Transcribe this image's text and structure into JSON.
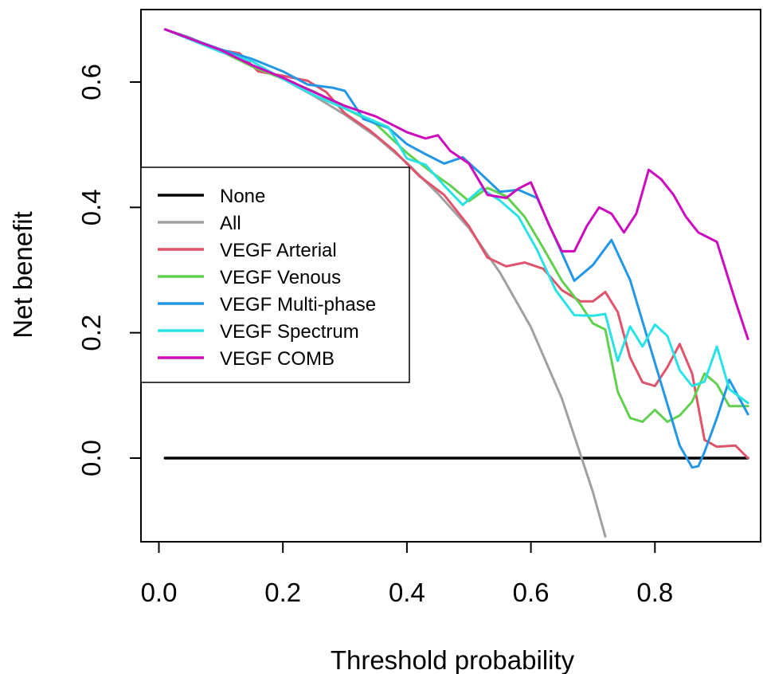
{
  "chart_data": {
    "type": "line",
    "title": "",
    "xlabel": "Threshold probability",
    "ylabel": "Net benefit",
    "xlim": [
      0.0,
      0.95
    ],
    "ylim": [
      -0.13,
      0.71
    ],
    "xticks": [
      "0.0",
      "0.2",
      "0.4",
      "0.6",
      "0.8"
    ],
    "yticks": [
      "0.0",
      "0.2",
      "0.4",
      "0.6"
    ],
    "grid": false,
    "legend_position": "left",
    "series": [
      {
        "name": "None",
        "color": "#000000",
        "x": [
          0.01,
          0.95
        ],
        "y": [
          0.0,
          0.0
        ]
      },
      {
        "name": "All",
        "color": "#A0A0A0",
        "x": [
          0.01,
          0.05,
          0.1,
          0.15,
          0.2,
          0.25,
          0.3,
          0.35,
          0.4,
          0.45,
          0.5,
          0.55,
          0.6,
          0.65,
          0.7,
          0.72
        ],
        "y": [
          0.684,
          0.671,
          0.649,
          0.627,
          0.605,
          0.578,
          0.548,
          0.513,
          0.471,
          0.422,
          0.367,
          0.296,
          0.209,
          0.095,
          -0.054,
          -0.125
        ]
      },
      {
        "name": "VEGF Arterial",
        "color": "#DF536B",
        "x": [
          0.01,
          0.1,
          0.13,
          0.16,
          0.2,
          0.24,
          0.27,
          0.3,
          0.34,
          0.38,
          0.42,
          0.46,
          0.5,
          0.53,
          0.56,
          0.59,
          0.62,
          0.65,
          0.68,
          0.7,
          0.72,
          0.74,
          0.76,
          0.78,
          0.8,
          0.82,
          0.84,
          0.86,
          0.88,
          0.9,
          0.93,
          0.95
        ],
        "y": [
          0.684,
          0.651,
          0.646,
          0.617,
          0.61,
          0.602,
          0.584,
          0.55,
          0.523,
          0.49,
          0.45,
          0.42,
          0.37,
          0.32,
          0.306,
          0.312,
          0.302,
          0.268,
          0.25,
          0.25,
          0.265,
          0.233,
          0.16,
          0.121,
          0.115,
          0.145,
          0.182,
          0.135,
          0.029,
          0.018,
          0.02,
          0.0
        ]
      },
      {
        "name": "VEGF Venous",
        "color": "#61D04F",
        "x": [
          0.01,
          0.1,
          0.15,
          0.2,
          0.25,
          0.3,
          0.35,
          0.4,
          0.44,
          0.47,
          0.5,
          0.53,
          0.56,
          0.59,
          0.62,
          0.65,
          0.68,
          0.7,
          0.72,
          0.74,
          0.76,
          0.78,
          0.8,
          0.82,
          0.84,
          0.86,
          0.88,
          0.9,
          0.92,
          0.95
        ],
        "y": [
          0.684,
          0.649,
          0.625,
          0.605,
          0.585,
          0.558,
          0.533,
          0.487,
          0.456,
          0.435,
          0.41,
          0.431,
          0.418,
          0.385,
          0.335,
          0.283,
          0.245,
          0.215,
          0.205,
          0.106,
          0.064,
          0.058,
          0.077,
          0.058,
          0.068,
          0.09,
          0.135,
          0.118,
          0.083,
          0.083
        ]
      },
      {
        "name": "VEGF Multi-phase",
        "color": "#2297E6",
        "x": [
          0.01,
          0.1,
          0.15,
          0.2,
          0.24,
          0.28,
          0.3,
          0.33,
          0.37,
          0.4,
          0.43,
          0.46,
          0.49,
          0.52,
          0.55,
          0.58,
          0.61,
          0.64,
          0.67,
          0.7,
          0.73,
          0.76,
          0.79,
          0.82,
          0.84,
          0.86,
          0.87,
          0.88,
          0.9,
          0.92,
          0.95
        ],
        "y": [
          0.684,
          0.652,
          0.637,
          0.617,
          0.596,
          0.591,
          0.586,
          0.541,
          0.527,
          0.501,
          0.485,
          0.47,
          0.48,
          0.453,
          0.425,
          0.428,
          0.415,
          0.349,
          0.283,
          0.308,
          0.348,
          0.284,
          0.185,
          0.086,
          0.02,
          -0.015,
          -0.013,
          0.01,
          0.064,
          0.125,
          0.07
        ]
      },
      {
        "name": "VEGF Spectrum",
        "color": "#28E2E5",
        "x": [
          0.01,
          0.1,
          0.15,
          0.2,
          0.25,
          0.29,
          0.33,
          0.37,
          0.4,
          0.43,
          0.46,
          0.49,
          0.52,
          0.55,
          0.58,
          0.61,
          0.64,
          0.67,
          0.7,
          0.72,
          0.74,
          0.76,
          0.78,
          0.8,
          0.82,
          0.84,
          0.86,
          0.88,
          0.9,
          0.92,
          0.95
        ],
        "y": [
          0.684,
          0.648,
          0.633,
          0.605,
          0.579,
          0.562,
          0.545,
          0.528,
          0.478,
          0.468,
          0.435,
          0.404,
          0.43,
          0.411,
          0.385,
          0.332,
          0.268,
          0.228,
          0.227,
          0.23,
          0.155,
          0.21,
          0.178,
          0.213,
          0.195,
          0.14,
          0.115,
          0.122,
          0.178,
          0.11,
          0.088
        ]
      },
      {
        "name": "VEGF COMB",
        "color": "#CD0BBC",
        "x": [
          0.01,
          0.1,
          0.15,
          0.2,
          0.25,
          0.3,
          0.35,
          0.4,
          0.43,
          0.45,
          0.47,
          0.5,
          0.53,
          0.56,
          0.58,
          0.6,
          0.63,
          0.65,
          0.67,
          0.69,
          0.71,
          0.73,
          0.75,
          0.77,
          0.79,
          0.81,
          0.83,
          0.85,
          0.87,
          0.9,
          0.93,
          0.95
        ],
        "y": [
          0.684,
          0.651,
          0.627,
          0.607,
          0.584,
          0.562,
          0.545,
          0.52,
          0.51,
          0.515,
          0.49,
          0.47,
          0.42,
          0.415,
          0.43,
          0.44,
          0.37,
          0.33,
          0.33,
          0.37,
          0.4,
          0.39,
          0.36,
          0.39,
          0.46,
          0.445,
          0.42,
          0.385,
          0.36,
          0.345,
          0.25,
          0.19
        ]
      }
    ]
  }
}
